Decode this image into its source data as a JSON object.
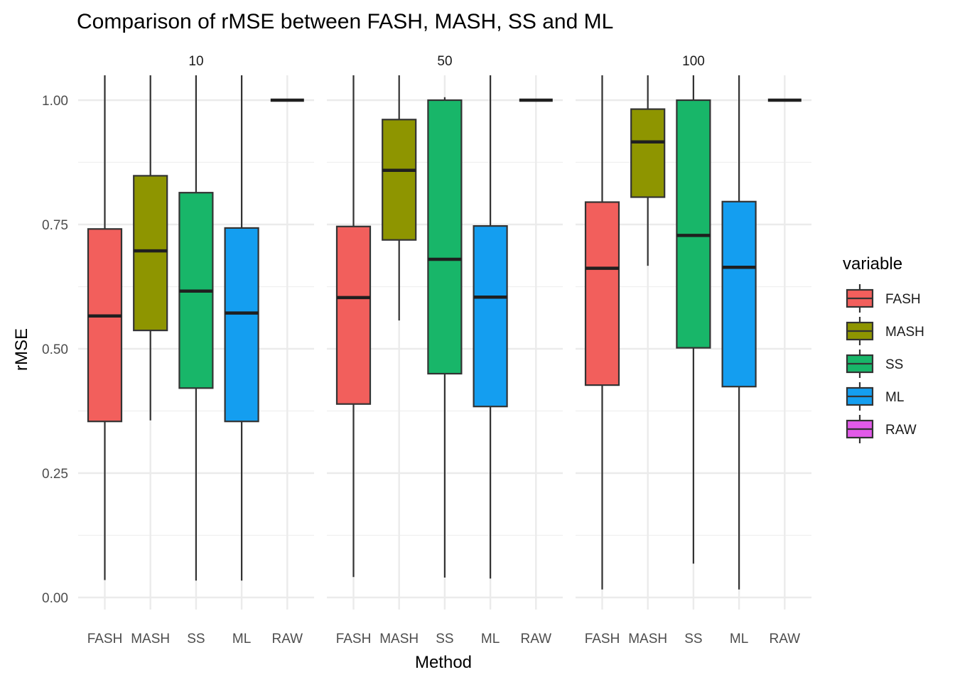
{
  "chart_data": {
    "type": "boxplot",
    "title": "Comparison of rMSE between FASH, MASH, SS and ML",
    "xlabel": "Method",
    "ylabel": "rMSE",
    "ylim": [
      -0.0,
      1.05
    ],
    "yticks": [
      0.0,
      0.25,
      0.5,
      0.75,
      1.0
    ],
    "ytick_labels": [
      "0.00",
      "0.25",
      "0.50",
      "0.75",
      "1.00"
    ],
    "grid": true,
    "categories": [
      "FASH",
      "MASH",
      "SS",
      "ML",
      "RAW"
    ],
    "colors": {
      "FASH": "#F25F5C",
      "MASH": "#8E9500",
      "SS": "#18B669",
      "ML": "#149EF0",
      "RAW": "#E25AE9"
    },
    "legend": {
      "title": "variable",
      "position": "right",
      "entries": [
        "FASH",
        "MASH",
        "SS",
        "ML",
        "RAW"
      ]
    },
    "facets": [
      {
        "label": "10",
        "boxes": [
          {
            "method": "FASH",
            "min": 0.035,
            "q1": 0.354,
            "median": 0.566,
            "q3": 0.741,
            "max": 1.05
          },
          {
            "method": "MASH",
            "min": 0.356,
            "q1": 0.537,
            "median": 0.697,
            "q3": 0.848,
            "max": 1.05
          },
          {
            "method": "SS",
            "min": 0.034,
            "q1": 0.421,
            "median": 0.616,
            "q3": 0.814,
            "max": 1.05
          },
          {
            "method": "ML",
            "min": 0.034,
            "q1": 0.354,
            "median": 0.572,
            "q3": 0.743,
            "max": 1.05
          },
          {
            "method": "RAW",
            "min": 1.0,
            "q1": 1.0,
            "median": 1.0,
            "q3": 1.0,
            "max": 1.0
          }
        ]
      },
      {
        "label": "50",
        "boxes": [
          {
            "method": "FASH",
            "min": 0.041,
            "q1": 0.389,
            "median": 0.603,
            "q3": 0.746,
            "max": 1.05
          },
          {
            "method": "MASH",
            "min": 0.557,
            "q1": 0.719,
            "median": 0.859,
            "q3": 0.961,
            "max": 1.05
          },
          {
            "method": "SS",
            "min": 0.04,
            "q1": 0.45,
            "median": 0.68,
            "q3": 1.0,
            "max": 1.006
          },
          {
            "method": "ML",
            "min": 0.038,
            "q1": 0.384,
            "median": 0.604,
            "q3": 0.747,
            "max": 1.05
          },
          {
            "method": "RAW",
            "min": 1.0,
            "q1": 1.0,
            "median": 1.0,
            "q3": 1.0,
            "max": 1.0
          }
        ]
      },
      {
        "label": "100",
        "boxes": [
          {
            "method": "FASH",
            "min": 0.016,
            "q1": 0.427,
            "median": 0.662,
            "q3": 0.795,
            "max": 1.05
          },
          {
            "method": "MASH",
            "min": 0.667,
            "q1": 0.805,
            "median": 0.916,
            "q3": 0.982,
            "max": 1.05
          },
          {
            "method": "SS",
            "min": 0.068,
            "q1": 0.502,
            "median": 0.728,
            "q3": 1.0,
            "max": 1.05
          },
          {
            "method": "ML",
            "min": 0.016,
            "q1": 0.424,
            "median": 0.664,
            "q3": 0.796,
            "max": 1.05
          },
          {
            "method": "RAW",
            "min": 1.0,
            "q1": 1.0,
            "median": 1.0,
            "q3": 1.0,
            "max": 1.0
          }
        ]
      }
    ]
  }
}
